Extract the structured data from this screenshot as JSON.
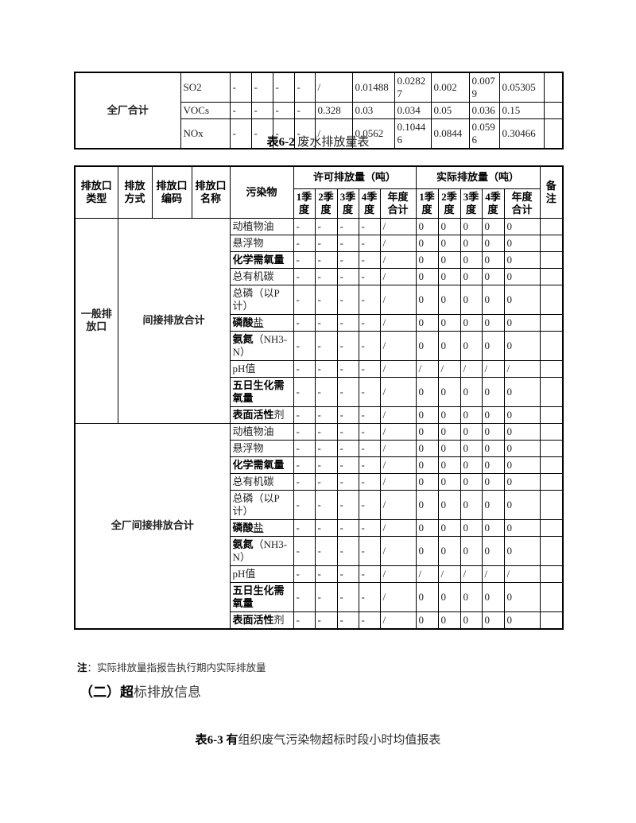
{
  "top_table": {
    "row_label": "全厂合计",
    "rows": [
      {
        "pollutant": "SO2",
        "cells": [
          "-",
          "-",
          "-",
          "-",
          "/",
          "0.01488",
          "0.02827",
          "0.002",
          "0.0079",
          "0.05305",
          ""
        ]
      },
      {
        "pollutant": "VOCs",
        "cells": [
          "-",
          "-",
          "-",
          "-",
          "0.328",
          "0.03",
          "0.034",
          "0.05",
          "0.036",
          "0.15",
          ""
        ]
      },
      {
        "pollutant": "NOx",
        "cells": [
          "-",
          "-",
          "-",
          "-",
          "/",
          "0.0562",
          "0.10446",
          "0.0844",
          "0.0596",
          "0.30466",
          ""
        ]
      }
    ]
  },
  "title_62": {
    "bold": "表6-2",
    "rest": " 废水排放量表"
  },
  "table2": {
    "headers": {
      "outlet_type": "排放口\n类型",
      "method": "排放\n方式",
      "code": "排放口\n编码",
      "outlet_name": "排放口\n名称",
      "pollutant": "污染物",
      "permitted_group": "许可排放量（吨）",
      "actual_group": "实际排放量（吨）",
      "quarters": [
        "1季\n度",
        "2季\n度",
        "3季\n度",
        "4季\n度",
        "年度\n合计"
      ],
      "remark": "备\n注"
    },
    "sections": [
      {
        "type_label": "一般排\n放口",
        "merged_label": "间接排放合计",
        "merged_span": 3
      },
      {
        "merged_label": "全厂间接排放合计",
        "merged_span": 4
      }
    ],
    "pollutant_rows": [
      {
        "name": [
          {
            "t": "动植物油"
          }
        ],
        "values": [
          "-",
          "-",
          "-",
          "-",
          "/",
          "0",
          "0",
          "0",
          "0",
          "0",
          ""
        ]
      },
      {
        "name": [
          {
            "t": "悬浮物"
          }
        ],
        "values": [
          "-",
          "-",
          "-",
          "-",
          "/",
          "0",
          "0",
          "0",
          "0",
          "0",
          ""
        ]
      },
      {
        "name": [
          {
            "t": "化学需氧量",
            "b": true
          }
        ],
        "values": [
          "-",
          "-",
          "-",
          "-",
          "/",
          "0",
          "0",
          "0",
          "0",
          "0",
          ""
        ]
      },
      {
        "name": [
          {
            "t": "总有机碳"
          }
        ],
        "values": [
          "-",
          "-",
          "-",
          "-",
          "/",
          "0",
          "0",
          "0",
          "0",
          "0",
          ""
        ]
      },
      {
        "name": [
          {
            "t": "总磷（以P计）"
          }
        ],
        "values": [
          "-",
          "-",
          "-",
          "-",
          "/",
          "0",
          "0",
          "0",
          "0",
          "0",
          ""
        ]
      },
      {
        "name": [
          {
            "t": "磷酸",
            "b": true
          },
          {
            "t": "盐",
            "u": true
          }
        ],
        "values": [
          "-",
          "-",
          "-",
          "-",
          "/",
          "0",
          "0",
          "0",
          "0",
          "0",
          ""
        ]
      },
      {
        "name": [
          {
            "t": "氨氮",
            "b": true
          },
          {
            "t": "（NH3-N）"
          }
        ],
        "values": [
          "-",
          "-",
          "-",
          "-",
          "/",
          "0",
          "0",
          "0",
          "0",
          "0",
          ""
        ]
      },
      {
        "name": [
          {
            "t": "pH值"
          }
        ],
        "values": [
          "-",
          "-",
          "-",
          "-",
          "/",
          "/",
          "/",
          "/",
          "/",
          "/",
          ""
        ]
      },
      {
        "name": [
          {
            "t": "五日生化需氧量",
            "b": true
          }
        ],
        "values": [
          "-",
          "-",
          "-",
          "-",
          "/",
          "0",
          "0",
          "0",
          "0",
          "0",
          ""
        ]
      },
      {
        "name": [
          {
            "t": "表面活性",
            "b": true
          },
          {
            "t": "剂"
          }
        ],
        "values": [
          "-",
          "-",
          "-",
          "-",
          "/",
          "0",
          "0",
          "0",
          "0",
          "0",
          ""
        ]
      }
    ]
  },
  "note": {
    "bold": "注",
    "rest": "：实际排放量指报告执行期内实际排放量"
  },
  "heading": {
    "bold": "（二）超",
    "rest": "标排放信息"
  },
  "caption_63": {
    "bold": "表6-3 有",
    "rest": "组织废气污染物超标时段小时均值报表"
  }
}
